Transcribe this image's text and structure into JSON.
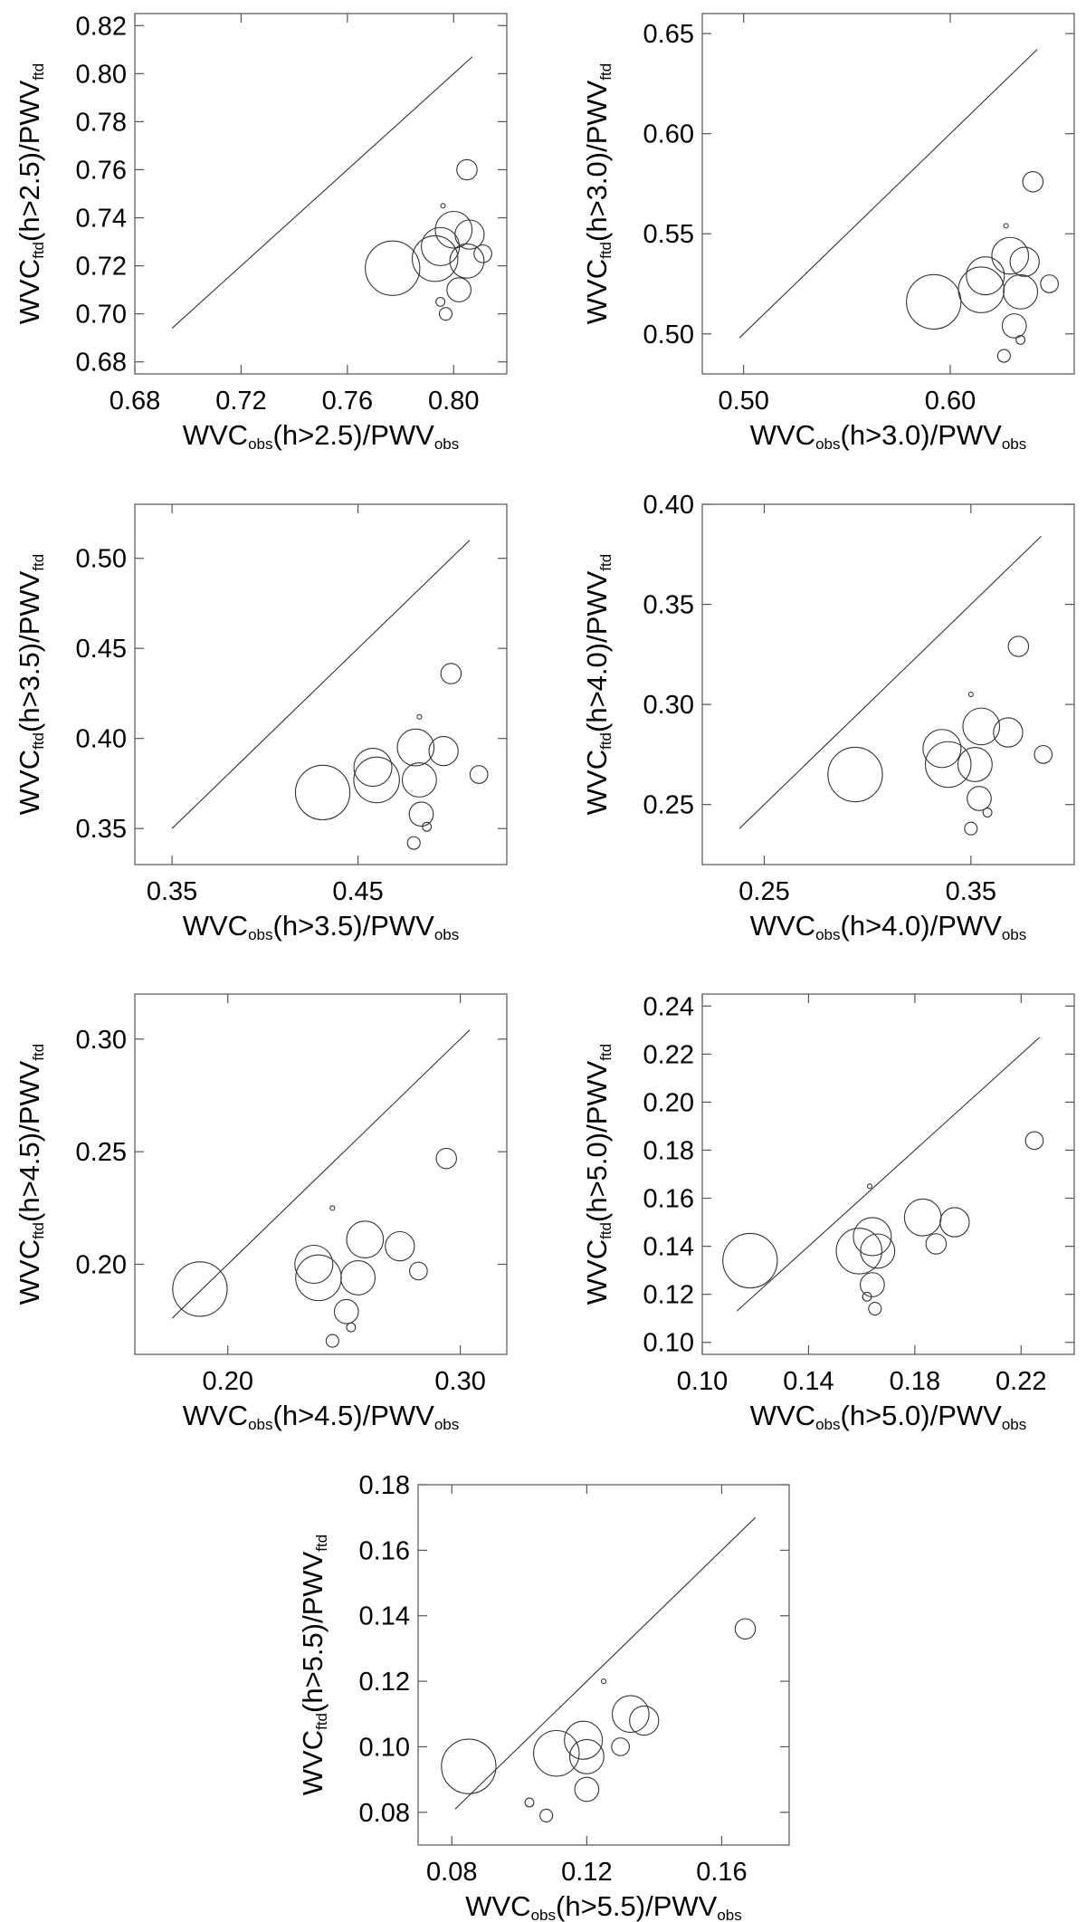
{
  "chart_data": [
    {
      "type": "scatter",
      "xlabel": {
        "base": "WVC",
        "sub": "obs",
        "mid": "(h>2.5)/PWV",
        "sub2": "obs"
      },
      "ylabel": {
        "base": "WVC",
        "sub": "ftd",
        "mid": "(h>2.5)/PWV",
        "sub2": "ftd"
      },
      "xlim": [
        0.68,
        0.82
      ],
      "ylim": [
        0.675,
        0.825
      ],
      "xticks": [
        0.68,
        0.72,
        0.76,
        0.8
      ],
      "xtick_labels": [
        "0.68",
        "0.72",
        "0.76",
        "0.80"
      ],
      "yticks": [
        0.68,
        0.7,
        0.72,
        0.74,
        0.76,
        0.78,
        0.8,
        0.82
      ],
      "ytick_labels": [
        "0.68",
        "0.70",
        "0.72",
        "0.74",
        "0.76",
        "0.78",
        "0.80",
        "0.82"
      ],
      "diagonal": [
        0.694,
        0.807
      ],
      "points": [
        {
          "x": 0.777,
          "y": 0.719,
          "r": 4.3
        },
        {
          "x": 0.793,
          "y": 0.723,
          "r": 3.6
        },
        {
          "x": 0.795,
          "y": 0.728,
          "r": 3.0
        },
        {
          "x": 0.8,
          "y": 0.735,
          "r": 2.9
        },
        {
          "x": 0.806,
          "y": 0.733,
          "r": 2.3
        },
        {
          "x": 0.805,
          "y": 0.722,
          "r": 2.7
        },
        {
          "x": 0.811,
          "y": 0.725,
          "r": 1.4
        },
        {
          "x": 0.802,
          "y": 0.71,
          "r": 1.9
        },
        {
          "x": 0.805,
          "y": 0.76,
          "r": 1.6
        },
        {
          "x": 0.797,
          "y": 0.7,
          "r": 1.0
        },
        {
          "x": 0.795,
          "y": 0.705,
          "r": 0.7
        },
        {
          "x": 0.796,
          "y": 0.745,
          "r": 0.3
        }
      ]
    },
    {
      "type": "scatter",
      "xlabel": {
        "base": "WVC",
        "sub": "obs",
        "mid": "(h>3.0)/PWV",
        "sub2": "obs"
      },
      "ylabel": {
        "base": "WVC",
        "sub": "ftd",
        "mid": "(h>3.0)/PWV",
        "sub2": "ftd"
      },
      "xlim": [
        0.48,
        0.66
      ],
      "ylim": [
        0.48,
        0.66
      ],
      "xticks": [
        0.5,
        0.6
      ],
      "xtick_labels": [
        "0.50",
        "0.60"
      ],
      "yticks": [
        0.5,
        0.55,
        0.6,
        0.65
      ],
      "ytick_labels": [
        "0.50",
        "0.55",
        "0.60",
        "0.65"
      ],
      "diagonal": [
        0.498,
        0.642
      ],
      "points": [
        {
          "x": 0.592,
          "y": 0.516,
          "r": 4.3
        },
        {
          "x": 0.615,
          "y": 0.522,
          "r": 3.6
        },
        {
          "x": 0.617,
          "y": 0.529,
          "r": 3.0
        },
        {
          "x": 0.629,
          "y": 0.539,
          "r": 2.9
        },
        {
          "x": 0.636,
          "y": 0.536,
          "r": 2.3
        },
        {
          "x": 0.634,
          "y": 0.521,
          "r": 2.7
        },
        {
          "x": 0.648,
          "y": 0.525,
          "r": 1.4
        },
        {
          "x": 0.631,
          "y": 0.504,
          "r": 1.9
        },
        {
          "x": 0.64,
          "y": 0.576,
          "r": 1.6
        },
        {
          "x": 0.626,
          "y": 0.489,
          "r": 1.0
        },
        {
          "x": 0.634,
          "y": 0.497,
          "r": 0.7
        },
        {
          "x": 0.627,
          "y": 0.554,
          "r": 0.3
        }
      ]
    },
    {
      "type": "scatter",
      "xlabel": {
        "base": "WVC",
        "sub": "obs",
        "mid": "(h>3.5)/PWV",
        "sub2": "obs"
      },
      "ylabel": {
        "base": "WVC",
        "sub": "ftd",
        "mid": "(h>3.5)/PWV",
        "sub2": "ftd"
      },
      "xlim": [
        0.33,
        0.53
      ],
      "ylim": [
        0.33,
        0.53
      ],
      "xticks": [
        0.35,
        0.45
      ],
      "xtick_labels": [
        "0.35",
        "0.45"
      ],
      "yticks": [
        0.35,
        0.4,
        0.45,
        0.5
      ],
      "ytick_labels": [
        "0.35",
        "0.40",
        "0.45",
        "0.50"
      ],
      "diagonal": [
        0.35,
        0.51
      ],
      "points": [
        {
          "x": 0.431,
          "y": 0.37,
          "r": 4.3
        },
        {
          "x": 0.46,
          "y": 0.377,
          "r": 3.6
        },
        {
          "x": 0.458,
          "y": 0.384,
          "r": 3.0
        },
        {
          "x": 0.481,
          "y": 0.395,
          "r": 2.9
        },
        {
          "x": 0.496,
          "y": 0.393,
          "r": 2.3
        },
        {
          "x": 0.483,
          "y": 0.377,
          "r": 2.7
        },
        {
          "x": 0.515,
          "y": 0.38,
          "r": 1.4
        },
        {
          "x": 0.484,
          "y": 0.358,
          "r": 1.9
        },
        {
          "x": 0.5,
          "y": 0.436,
          "r": 1.6
        },
        {
          "x": 0.48,
          "y": 0.342,
          "r": 1.0
        },
        {
          "x": 0.487,
          "y": 0.351,
          "r": 0.7
        },
        {
          "x": 0.483,
          "y": 0.412,
          "r": 0.3
        }
      ]
    },
    {
      "type": "scatter",
      "xlabel": {
        "base": "WVC",
        "sub": "obs",
        "mid": "(h>4.0)/PWV",
        "sub2": "obs"
      },
      "ylabel": {
        "base": "WVC",
        "sub": "ftd",
        "mid": "(h>4.0)/PWV",
        "sub2": "ftd"
      },
      "xlim": [
        0.22,
        0.4
      ],
      "ylim": [
        0.22,
        0.4
      ],
      "xticks": [
        0.25,
        0.35
      ],
      "xtick_labels": [
        "0.25",
        "0.35"
      ],
      "yticks": [
        0.25,
        0.3,
        0.35,
        0.4
      ],
      "ytick_labels": [
        "0.25",
        "0.30",
        "0.35",
        "0.40"
      ],
      "diagonal": [
        0.238,
        0.384
      ],
      "points": [
        {
          "x": 0.294,
          "y": 0.265,
          "r": 4.3
        },
        {
          "x": 0.339,
          "y": 0.27,
          "r": 3.6
        },
        {
          "x": 0.336,
          "y": 0.278,
          "r": 3.0
        },
        {
          "x": 0.355,
          "y": 0.289,
          "r": 2.9
        },
        {
          "x": 0.368,
          "y": 0.286,
          "r": 2.3
        },
        {
          "x": 0.352,
          "y": 0.27,
          "r": 2.7
        },
        {
          "x": 0.385,
          "y": 0.275,
          "r": 1.4
        },
        {
          "x": 0.354,
          "y": 0.253,
          "r": 1.9
        },
        {
          "x": 0.373,
          "y": 0.329,
          "r": 1.6
        },
        {
          "x": 0.35,
          "y": 0.238,
          "r": 1.0
        },
        {
          "x": 0.358,
          "y": 0.246,
          "r": 0.7
        },
        {
          "x": 0.35,
          "y": 0.305,
          "r": 0.3
        }
      ]
    },
    {
      "type": "scatter",
      "xlabel": {
        "base": "WVC",
        "sub": "obs",
        "mid": "(h>4.5)/PWV",
        "sub2": "obs"
      },
      "ylabel": {
        "base": "WVC",
        "sub": "ftd",
        "mid": "(h>4.5)/PWV",
        "sub2": "ftd"
      },
      "xlim": [
        0.16,
        0.32
      ],
      "ylim": [
        0.16,
        0.32
      ],
      "xticks": [
        0.2,
        0.3
      ],
      "xtick_labels": [
        "0.20",
        "0.30"
      ],
      "yticks": [
        0.2,
        0.25,
        0.3
      ],
      "ytick_labels": [
        "0.20",
        "0.25",
        "0.30"
      ],
      "diagonal": [
        0.176,
        0.304
      ],
      "points": [
        {
          "x": 0.188,
          "y": 0.189,
          "r": 4.3
        },
        {
          "x": 0.239,
          "y": 0.194,
          "r": 3.6
        },
        {
          "x": 0.237,
          "y": 0.2,
          "r": 3.0
        },
        {
          "x": 0.259,
          "y": 0.211,
          "r": 2.9
        },
        {
          "x": 0.274,
          "y": 0.208,
          "r": 2.3
        },
        {
          "x": 0.256,
          "y": 0.194,
          "r": 2.7
        },
        {
          "x": 0.282,
          "y": 0.197,
          "r": 1.4
        },
        {
          "x": 0.251,
          "y": 0.179,
          "r": 1.9
        },
        {
          "x": 0.294,
          "y": 0.247,
          "r": 1.6
        },
        {
          "x": 0.245,
          "y": 0.166,
          "r": 1.0
        },
        {
          "x": 0.253,
          "y": 0.172,
          "r": 0.7
        },
        {
          "x": 0.245,
          "y": 0.225,
          "r": 0.3
        }
      ]
    },
    {
      "type": "scatter",
      "xlabel": {
        "base": "WVC",
        "sub": "obs",
        "mid": "(h>5.0)/PWV",
        "sub2": "obs"
      },
      "ylabel": {
        "base": "WVC",
        "sub": "ftd",
        "mid": "(h>5.0)/PWV",
        "sub2": "ftd"
      },
      "xlim": [
        0.1,
        0.24
      ],
      "ylim": [
        0.095,
        0.245
      ],
      "xticks": [
        0.1,
        0.14,
        0.18,
        0.22
      ],
      "xtick_labels": [
        "0.10",
        "0.14",
        "0.18",
        "0.22"
      ],
      "yticks": [
        0.1,
        0.12,
        0.14,
        0.16,
        0.18,
        0.2,
        0.22,
        0.24
      ],
      "ytick_labels": [
        "0.10",
        "0.12",
        "0.14",
        "0.16",
        "0.18",
        "0.20",
        "0.22",
        "0.24"
      ],
      "diagonal": [
        0.113,
        0.227
      ],
      "points": [
        {
          "x": 0.118,
          "y": 0.134,
          "r": 4.3
        },
        {
          "x": 0.159,
          "y": 0.138,
          "r": 3.6
        },
        {
          "x": 0.164,
          "y": 0.144,
          "r": 3.0
        },
        {
          "x": 0.183,
          "y": 0.152,
          "r": 2.9
        },
        {
          "x": 0.195,
          "y": 0.15,
          "r": 2.3
        },
        {
          "x": 0.166,
          "y": 0.138,
          "r": 2.7
        },
        {
          "x": 0.225,
          "y": 0.184,
          "r": 1.4
        },
        {
          "x": 0.164,
          "y": 0.124,
          "r": 1.9
        },
        {
          "x": 0.188,
          "y": 0.141,
          "r": 1.6
        },
        {
          "x": 0.165,
          "y": 0.114,
          "r": 1.0
        },
        {
          "x": 0.162,
          "y": 0.119,
          "r": 0.7
        },
        {
          "x": 0.163,
          "y": 0.165,
          "r": 0.3
        }
      ]
    },
    {
      "type": "scatter",
      "xlabel": {
        "base": "WVC",
        "sub": "obs",
        "mid": "(h>5.5)/PWV",
        "sub2": "obs"
      },
      "ylabel": {
        "base": "WVC",
        "sub": "ftd",
        "mid": "(h>5.5)/PWV",
        "sub2": "ftd"
      },
      "xlim": [
        0.07,
        0.18
      ],
      "ylim": [
        0.07,
        0.18
      ],
      "xticks": [
        0.08,
        0.12,
        0.16
      ],
      "xtick_labels": [
        "0.08",
        "0.12",
        "0.16"
      ],
      "yticks": [
        0.08,
        0.1,
        0.12,
        0.14,
        0.16,
        0.18
      ],
      "ytick_labels": [
        "0.08",
        "0.10",
        "0.12",
        "0.14",
        "0.16",
        "0.18"
      ],
      "diagonal": [
        0.081,
        0.17
      ],
      "points": [
        {
          "x": 0.085,
          "y": 0.094,
          "r": 4.3
        },
        {
          "x": 0.111,
          "y": 0.098,
          "r": 3.6
        },
        {
          "x": 0.119,
          "y": 0.102,
          "r": 3.0
        },
        {
          "x": 0.133,
          "y": 0.11,
          "r": 2.9
        },
        {
          "x": 0.137,
          "y": 0.108,
          "r": 2.3
        },
        {
          "x": 0.12,
          "y": 0.097,
          "r": 2.7
        },
        {
          "x": 0.13,
          "y": 0.1,
          "r": 1.4
        },
        {
          "x": 0.12,
          "y": 0.087,
          "r": 1.9
        },
        {
          "x": 0.167,
          "y": 0.136,
          "r": 1.6
        },
        {
          "x": 0.108,
          "y": 0.079,
          "r": 1.0
        },
        {
          "x": 0.103,
          "y": 0.083,
          "r": 0.7
        },
        {
          "x": 0.125,
          "y": 0.12,
          "r": 0.3
        }
      ]
    }
  ]
}
